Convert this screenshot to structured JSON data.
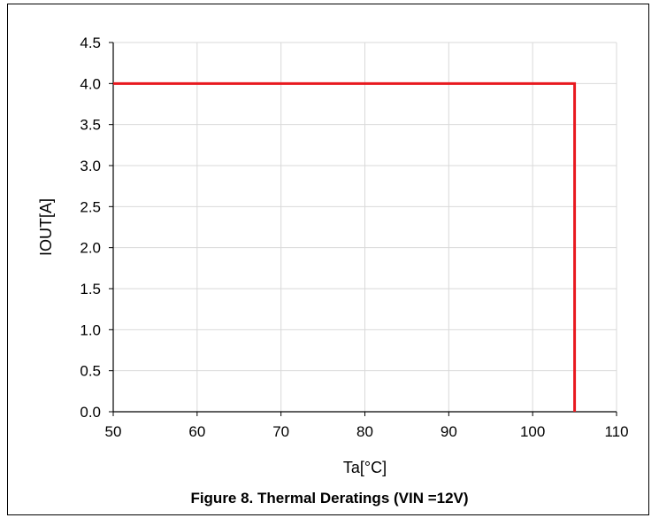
{
  "chart_data": {
    "type": "line",
    "title": "",
    "xlabel": "Ta[°C]",
    "ylabel": "IOUT[A]",
    "xlim": [
      50,
      110
    ],
    "ylim": [
      0,
      4.5
    ],
    "x_ticks": [
      "50",
      "60",
      "70",
      "80",
      "90",
      "100",
      "110"
    ],
    "y_ticks": [
      "0.0",
      "0.5",
      "1.0",
      "1.5",
      "2.0",
      "2.5",
      "3.0",
      "3.5",
      "4.0",
      "4.5"
    ],
    "grid": true,
    "series": [
      {
        "x": [
          50,
          105,
          105
        ],
        "y": [
          4.0,
          4.0,
          0.0
        ],
        "color": "#e8191f"
      }
    ]
  },
  "caption": "Figure 8. Thermal Deratings (VIN =12V)"
}
